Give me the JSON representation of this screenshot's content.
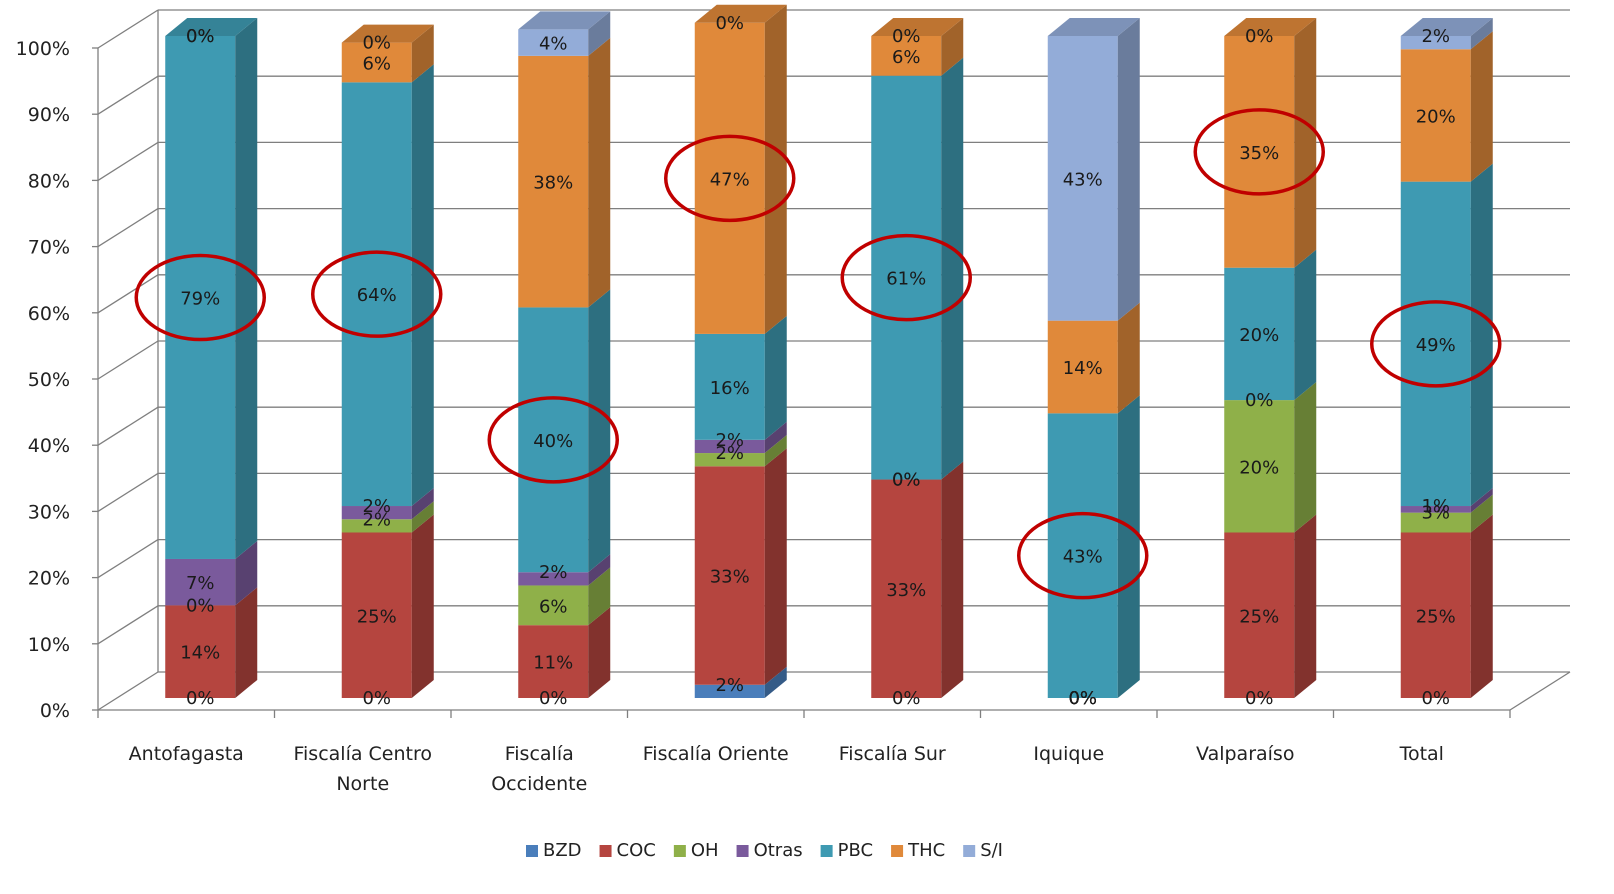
{
  "chart_data": {
    "type": "bar",
    "stacked": true,
    "percent_stacked": true,
    "three_d": true,
    "categories": [
      "Antofagasta",
      "Fiscalía Centro Norte",
      "Fiscalía Occidente",
      "Fiscalía Oriente",
      "Fiscalía Sur",
      "Iquique",
      "Valparaíso",
      "Total"
    ],
    "category_lines": [
      [
        "Antofagasta"
      ],
      [
        "Fiscalía Centro",
        "Norte"
      ],
      [
        "Fiscalía",
        "Occidente"
      ],
      [
        "Fiscalía Oriente"
      ],
      [
        "Fiscalía Sur"
      ],
      [
        "Iquique"
      ],
      [
        "Valparaíso"
      ],
      [
        "Total"
      ]
    ],
    "series": [
      {
        "name": "BZD",
        "color": "#4a7ebb",
        "values": [
          0,
          0,
          0,
          2,
          0,
          0,
          0,
          0
        ],
        "labels": [
          "0%",
          "0%",
          "0%",
          "2%",
          "0%",
          "0%",
          "0%",
          "0%"
        ]
      },
      {
        "name": "COC",
        "color": "#b5453f",
        "values": [
          14,
          25,
          11,
          33,
          33,
          0,
          25,
          25
        ],
        "labels": [
          "14%",
          "25%",
          "11%",
          "33%",
          "33%",
          "0%",
          "25%",
          "25%"
        ]
      },
      {
        "name": "OH",
        "color": "#8fb049",
        "values": [
          0,
          2,
          6,
          2,
          0,
          0,
          20,
          3
        ],
        "labels": [
          "0%",
          "2%",
          "6%",
          "2%",
          "0%",
          "0%",
          "20%",
          "3%"
        ]
      },
      {
        "name": "Otras",
        "color": "#7a5a9c",
        "values": [
          7,
          2,
          2,
          2,
          0,
          0,
          0,
          1
        ],
        "labels": [
          "7%",
          "2%",
          "2%",
          "2%",
          "0%",
          "0%",
          "0%",
          "1%"
        ]
      },
      {
        "name": "PBC",
        "color": "#3e9ab2",
        "values": [
          79,
          64,
          40,
          16,
          61,
          43,
          20,
          49
        ],
        "labels": [
          "79%",
          "64%",
          "40%",
          "16%",
          "61%",
          "43%",
          "20%",
          "49%"
        ]
      },
      {
        "name": "THC",
        "color": "#e0893a",
        "values": [
          0,
          6,
          38,
          47,
          6,
          14,
          35,
          20
        ],
        "labels": [
          "0%",
          "6%",
          "38%",
          "47%",
          "6%",
          "14%",
          "35%",
          "20%"
        ]
      },
      {
        "name": "S/I",
        "color": "#93acd8",
        "values": [
          0,
          0,
          4,
          0,
          0,
          43,
          0,
          2
        ],
        "labels": [
          "0%",
          "0%",
          "4%",
          "0%",
          "0%",
          "43%",
          "0%",
          "2%"
        ]
      }
    ],
    "y_ticks": [
      "0%",
      "10%",
      "20%",
      "30%",
      "40%",
      "50%",
      "60%",
      "70%",
      "80%",
      "90%",
      "100%"
    ],
    "ylim": [
      0,
      100
    ],
    "grid": true,
    "legend_position": "bottom",
    "highlight_color": "#c00000",
    "highlighted_segments": [
      {
        "category": "Antofagasta",
        "series": "PBC"
      },
      {
        "category": "Fiscalía Centro Norte",
        "series": "PBC"
      },
      {
        "category": "Fiscalía Occidente",
        "series": "PBC"
      },
      {
        "category": "Fiscalía Oriente",
        "series": "THC"
      },
      {
        "category": "Fiscalía Sur",
        "series": "PBC"
      },
      {
        "category": "Iquique",
        "series": "PBC"
      },
      {
        "category": "Valparaíso",
        "series": "THC"
      },
      {
        "category": "Total",
        "series": "PBC"
      }
    ]
  }
}
